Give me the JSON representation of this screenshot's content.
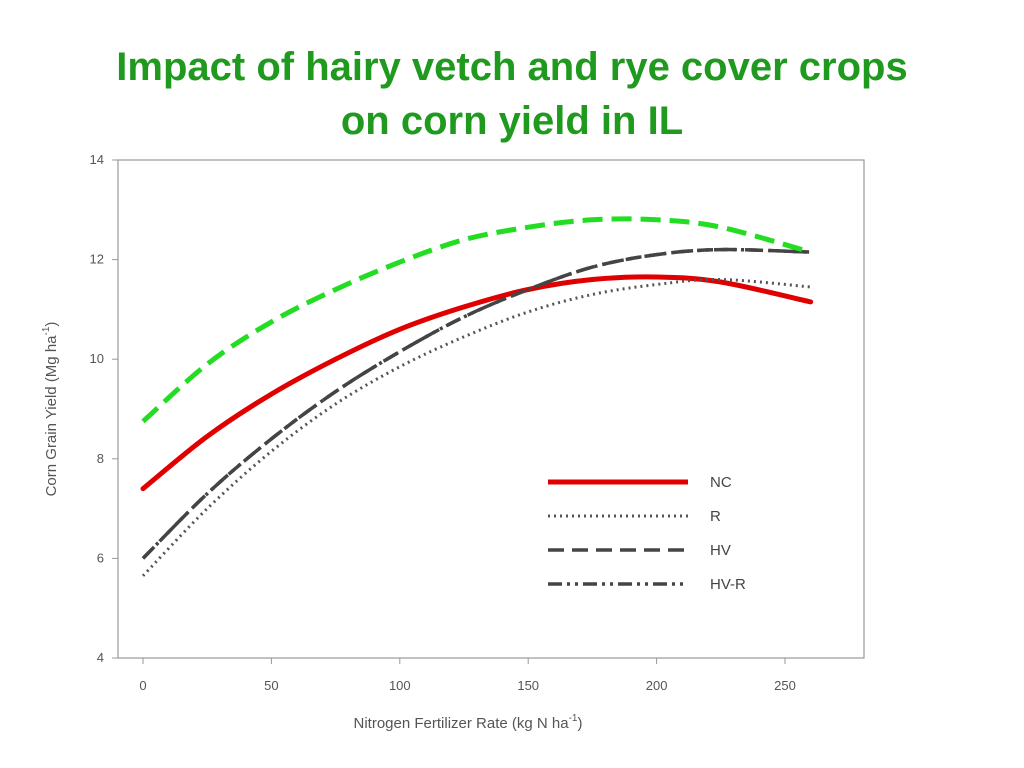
{
  "title_line1": "Impact of hairy vetch and rye cover crops",
  "title_line2": "on corn yield in IL",
  "chart_data": {
    "type": "line",
    "title": "Impact of hairy vetch and rye cover crops on corn yield in IL",
    "xlabel_main": "Nitrogen Fertilizer Rate (kg N ha",
    "xlabel_sup": "-1",
    "xlabel_end": ")",
    "ylabel_main": "Corn Grain Yield (Mg ha",
    "ylabel_sup": "-1",
    "ylabel_end": ")",
    "xlim": [
      -10,
      280
    ],
    "ylim": [
      4,
      14
    ],
    "xticks": [
      0,
      50,
      100,
      150,
      200,
      250
    ],
    "yticks": [
      4,
      6,
      8,
      10,
      12,
      14
    ],
    "grid": false,
    "legend_position": "lower-right",
    "series": [
      {
        "name": "NC",
        "style": "solid",
        "color": "#e00000",
        "legend": true,
        "x": [
          0,
          25,
          50,
          75,
          100,
          125,
          150,
          175,
          200,
          225,
          260
        ],
        "y": [
          7.4,
          8.45,
          9.3,
          10.0,
          10.6,
          11.05,
          11.4,
          11.6,
          11.65,
          11.55,
          11.15
        ]
      },
      {
        "name": "R",
        "style": "dotted",
        "color": "#555555",
        "legend": true,
        "x": [
          0,
          25,
          50,
          75,
          100,
          125,
          150,
          175,
          200,
          225,
          260
        ],
        "y": [
          5.65,
          7.0,
          8.15,
          9.1,
          9.85,
          10.45,
          10.95,
          11.3,
          11.5,
          11.6,
          11.45
        ]
      },
      {
        "name": "HV",
        "style": "dashed",
        "color": "#444444",
        "legend": true,
        "x": [
          0,
          25,
          50,
          75,
          100,
          125,
          150,
          175,
          200,
          225,
          260
        ],
        "y": [
          6.0,
          7.3,
          8.4,
          9.35,
          10.15,
          10.85,
          11.4,
          11.85,
          12.1,
          12.2,
          12.15
        ]
      },
      {
        "name": "HV-R",
        "style": "dashdotdot",
        "color": "#444444",
        "legend": true,
        "x": [
          0,
          25,
          50,
          75,
          100,
          125,
          150,
          175,
          200,
          225,
          260
        ],
        "y": [
          6.0,
          7.3,
          8.4,
          9.35,
          10.15,
          10.85,
          11.4,
          11.85,
          12.1,
          12.2,
          12.15
        ]
      },
      {
        "name": "",
        "style": "green-dashed",
        "color": "#22dd22",
        "legend": false,
        "x": [
          0,
          25,
          50,
          75,
          100,
          125,
          150,
          175,
          200,
          225,
          260
        ],
        "y": [
          8.75,
          9.9,
          10.75,
          11.4,
          11.95,
          12.4,
          12.65,
          12.8,
          12.8,
          12.65,
          12.15
        ]
      }
    ]
  }
}
